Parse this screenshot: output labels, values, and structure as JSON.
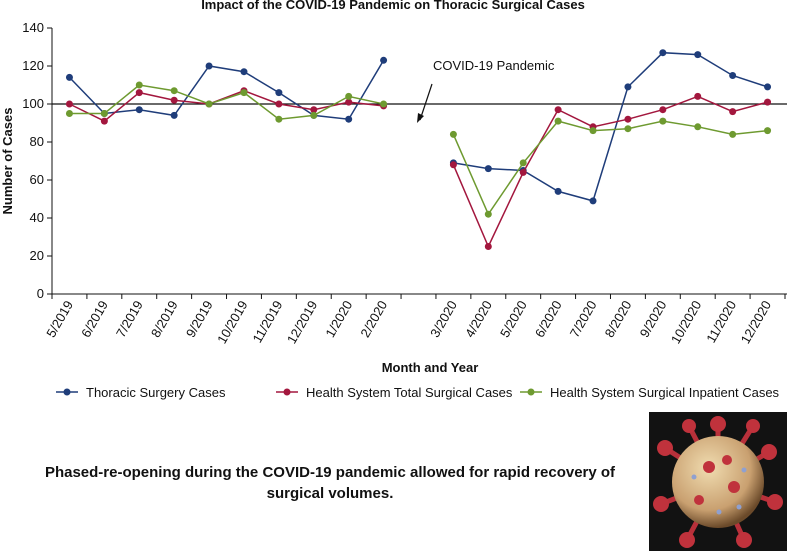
{
  "chart_data": {
    "type": "line",
    "title": "Impact of the COVID-19 Pandemic on Thoracic Surgical Cases",
    "x_label": "Month and Year",
    "y_label": "Number of Cases",
    "categories": [
      "5/2019",
      "6/2019",
      "7/2019",
      "8/2019",
      "9/2019",
      "10/2019",
      "11/2019",
      "12/2019",
      "1/2020",
      "2/2020",
      null,
      "3/2020",
      "4/2020",
      "5/2020",
      "6/2020",
      "7/2020",
      "8/2020",
      "9/2020",
      "10/2020",
      "11/2020",
      "12/2020"
    ],
    "series": [
      {
        "name": "Thoracic Surgery Cases",
        "color": "#1f3d7a",
        "values": [
          114,
          95,
          97,
          94,
          120,
          117,
          106,
          94,
          92,
          123,
          null,
          69,
          66,
          65,
          54,
          49,
          109,
          127,
          126,
          115,
          109
        ]
      },
      {
        "name": "Health System Total Surgical Cases",
        "color": "#a3173e",
        "values": [
          100,
          91,
          106,
          102,
          100,
          107,
          100,
          97,
          101,
          99,
          null,
          68,
          25,
          64,
          97,
          88,
          92,
          97,
          104,
          96,
          101
        ]
      },
      {
        "name": "Health System Surgical Inpatient Cases",
        "color": "#6e9a30",
        "values": [
          95,
          95,
          110,
          107,
          100,
          106,
          92,
          94,
          104,
          100,
          null,
          84,
          42,
          69,
          91,
          86,
          87,
          91,
          88,
          84,
          86
        ]
      }
    ],
    "ylim": [
      0,
      140
    ],
    "yticks": [
      0,
      20,
      40,
      60,
      80,
      100,
      120,
      140
    ],
    "reference_line": 100,
    "annotation": "COVID-19 Pandemic",
    "caption": "Phased-re-opening during the COVID-19 pandemic allowed for rapid recovery of surgical volumes."
  }
}
